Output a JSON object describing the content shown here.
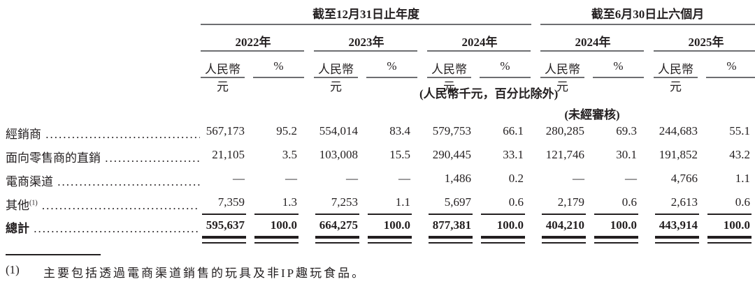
{
  "header": {
    "annual": "截至12月31日止年度",
    "half": "截至6月30日止六個月",
    "years": [
      "2022年",
      "2023年",
      "2024年",
      "2024年",
      "2025年"
    ],
    "rmb": "人民幣元",
    "pct": "%",
    "unit_note": "(人民幣千元，百分比除外)",
    "unaudited": "(未經審核)"
  },
  "rows": [
    {
      "label": "經銷商",
      "sup": "",
      "values": [
        "567,173",
        "95.2",
        "554,014",
        "83.4",
        "579,753",
        "66.1",
        "280,285",
        "69.3",
        "244,683",
        "55.1"
      ]
    },
    {
      "label": "面向零售商的直銷",
      "sup": "",
      "values": [
        "21,105",
        "3.5",
        "103,008",
        "15.5",
        "290,445",
        "33.1",
        "121,746",
        "30.1",
        "191,852",
        "43.2"
      ]
    },
    {
      "label": "電商渠道",
      "sup": "",
      "values": [
        "—",
        "—",
        "—",
        "—",
        "1,486",
        "0.2",
        "—",
        "—",
        "4,766",
        "1.1"
      ]
    },
    {
      "label": "其他",
      "sup": "(1)",
      "values": [
        "7,359",
        "1.3",
        "7,253",
        "1.1",
        "5,697",
        "0.6",
        "2,179",
        "0.6",
        "2,613",
        "0.6"
      ]
    }
  ],
  "total": {
    "label": "總計",
    "values": [
      "595,637",
      "100.0",
      "664,275",
      "100.0",
      "877,381",
      "100.0",
      "404,210",
      "100.0",
      "443,914",
      "100.0"
    ]
  },
  "footnote": {
    "marker": "(1)",
    "text": "主要包括透過電商渠道銷售的玩具及非IP趣玩食品。"
  }
}
